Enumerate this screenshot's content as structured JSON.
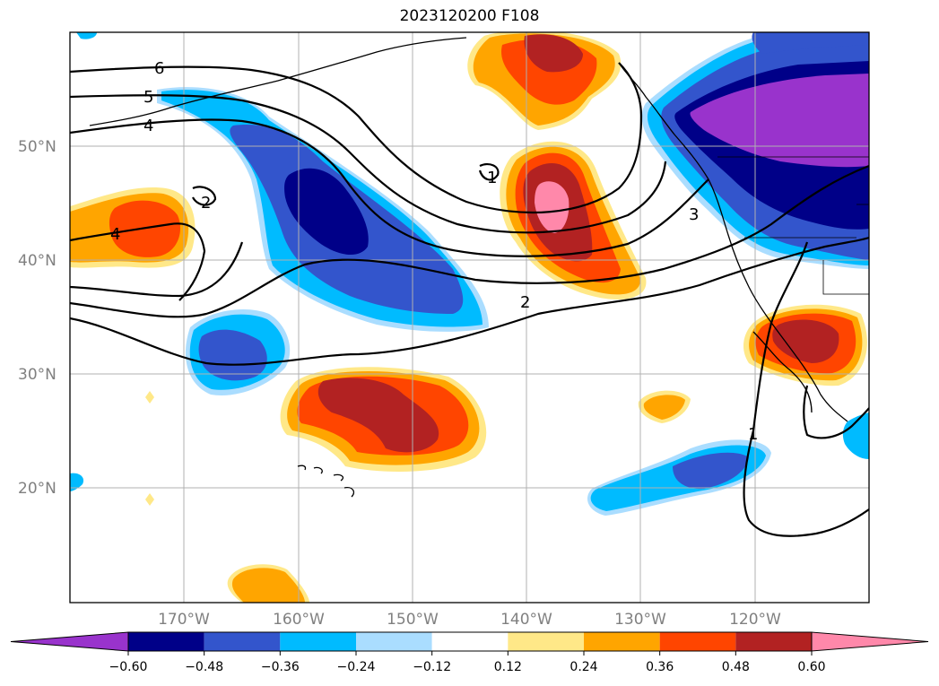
{
  "title": "2023120200 F108",
  "lat_labels": [
    "50°N",
    "40°N",
    "30°N",
    "20°N"
  ],
  "lon_labels": [
    "170°W",
    "160°W",
    "150°W",
    "140°W",
    "130°W",
    "120°W"
  ],
  "colorbar": {
    "ticks": [
      "−0.60",
      "−0.48",
      "−0.36",
      "−0.24",
      "−0.12",
      "0.12",
      "0.24",
      "0.36",
      "0.48",
      "0.60"
    ],
    "colors": [
      "#9933cc",
      "#000088",
      "#3355cc",
      "#00bbff",
      "#aaddff",
      "#ffffff",
      "#ffe888",
      "#ffa500",
      "#ff4500",
      "#b22222",
      "#ff88aa"
    ],
    "extend": "both"
  },
  "contour_labels": [
    "6",
    "5",
    "4",
    "2",
    "4",
    "1",
    "2",
    "3",
    "1"
  ],
  "colors": {
    "grid": "#b0b0b0",
    "frame": "#000000",
    "contour": "#000000"
  }
}
